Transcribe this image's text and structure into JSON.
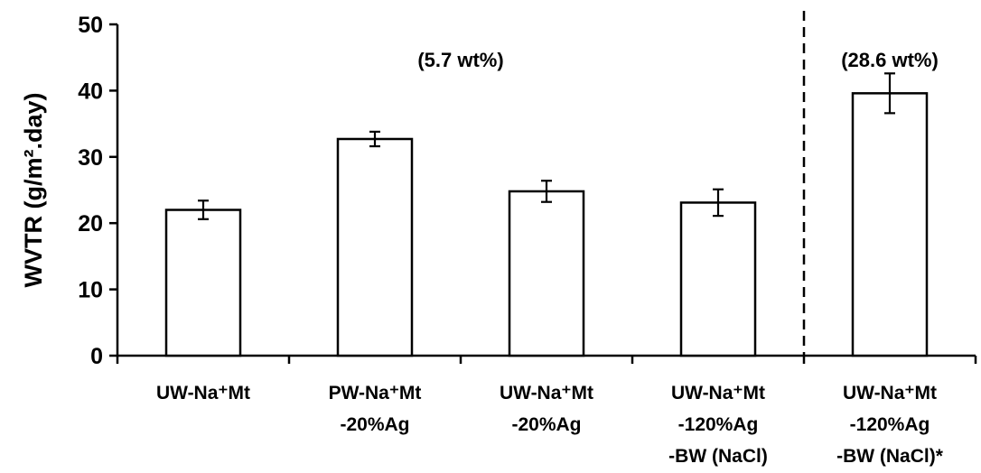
{
  "chart_data": {
    "type": "bar",
    "ylabel": "WVTR (g/m².day)",
    "ylim": [
      0,
      50
    ],
    "yticks": [
      "0",
      "10",
      "20",
      "30",
      "40",
      "50"
    ],
    "grid": false,
    "categories": [
      [
        "UW-Na⁺Mt"
      ],
      [
        "PW-Na⁺Mt",
        "-20%Ag"
      ],
      [
        "UW-Na⁺Mt",
        "-20%Ag"
      ],
      [
        "UW-Na⁺Mt",
        "-120%Ag",
        "-BW (NaCl)"
      ],
      [
        "UW-Na⁺Mt",
        "-120%Ag",
        "-BW (NaCl)*"
      ]
    ],
    "values": [
      22.0,
      32.7,
      24.8,
      23.1,
      39.6
    ],
    "errors": [
      1.4,
      1.1,
      1.6,
      2.0,
      3.0
    ],
    "annotations": [
      "(5.7 wt%)",
      "(28.6 wt%)"
    ],
    "bar_fill": "#ffffff",
    "bar_stroke": "#000000"
  }
}
